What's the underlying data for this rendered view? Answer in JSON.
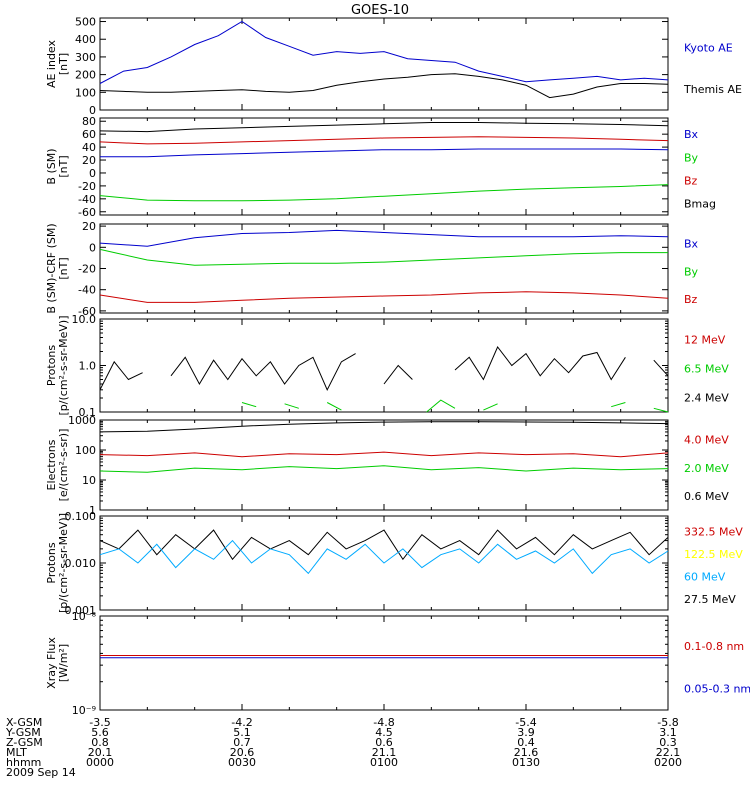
{
  "title": "GOES-10",
  "date_label": "2009 Sep 14",
  "colors": {
    "black": "#000000",
    "blue": "#0000cc",
    "red": "#cc0000",
    "green": "#00cc00",
    "yellow": "#ffff00",
    "cyan": "#00aaff",
    "axis": "#000000",
    "bg": "#ffffff"
  },
  "ephemeris": {
    "rows": [
      {
        "label": "X-GSM",
        "values": [
          "-3.5",
          "-4.2",
          "-4.8",
          "-5.4",
          "-5.8"
        ]
      },
      {
        "label": "Y-GSM",
        "values": [
          "5.6",
          "5.1",
          "4.5",
          "3.9",
          "3.1"
        ]
      },
      {
        "label": "Z-GSM",
        "values": [
          "0.8",
          "0.7",
          "0.6",
          "0.4",
          "0.3"
        ]
      },
      {
        "label": "MLT",
        "values": [
          "20.1",
          "20.6",
          "21.1",
          "21.6",
          "22.1"
        ]
      },
      {
        "label": "hhmm",
        "values": [
          "0000",
          "0030",
          "0100",
          "0130",
          "0200"
        ]
      }
    ]
  },
  "chart_data": [
    {
      "type": "line",
      "ylabel": [
        "AE index",
        "[nT]"
      ],
      "yscale": "linear",
      "ylim": [
        0,
        520
      ],
      "ticks": [
        {
          "v": 0,
          "t": "0"
        },
        {
          "v": 100,
          "t": "100"
        },
        {
          "v": 200,
          "t": "200"
        },
        {
          "v": 300,
          "t": "300"
        },
        {
          "v": 400,
          "t": "400"
        },
        {
          "v": 500,
          "t": "500"
        }
      ],
      "legend": [
        {
          "name": "Kyoto AE",
          "color": "#0000cc"
        },
        {
          "name": "Themis AE",
          "color": "#000000"
        }
      ],
      "x_minutes": [
        0,
        5,
        10,
        15,
        20,
        25,
        30,
        35,
        40,
        45,
        50,
        55,
        60,
        65,
        70,
        75,
        80,
        85,
        90,
        95,
        100,
        105,
        110,
        115,
        120
      ],
      "series": [
        {
          "name": "Kyoto AE",
          "color": "#0000cc",
          "values": [
            150,
            220,
            240,
            300,
            370,
            420,
            500,
            410,
            360,
            310,
            330,
            320,
            330,
            290,
            280,
            270,
            220,
            190,
            160,
            170,
            180,
            190,
            170,
            180,
            170
          ]
        },
        {
          "name": "Themis AE",
          "color": "#000000",
          "values": [
            110,
            105,
            100,
            100,
            105,
            110,
            115,
            105,
            100,
            110,
            140,
            160,
            175,
            185,
            200,
            205,
            190,
            170,
            140,
            70,
            90,
            130,
            150,
            150,
            145
          ]
        }
      ]
    },
    {
      "type": "line",
      "ylabel": [
        "B (SM)",
        "[nT]"
      ],
      "yscale": "linear",
      "ylim": [
        -65,
        85
      ],
      "ticks": [
        {
          "v": -60,
          "t": "-60"
        },
        {
          "v": -40,
          "t": "-40"
        },
        {
          "v": -20,
          "t": "-20"
        },
        {
          "v": 0,
          "t": "0"
        },
        {
          "v": 20,
          "t": "20"
        },
        {
          "v": 40,
          "t": "40"
        },
        {
          "v": 60,
          "t": "60"
        },
        {
          "v": 80,
          "t": "80"
        }
      ],
      "legend": [
        {
          "name": "Bx",
          "color": "#0000cc"
        },
        {
          "name": "By",
          "color": "#00cc00"
        },
        {
          "name": "Bz",
          "color": "#cc0000"
        },
        {
          "name": "Bmag",
          "color": "#000000"
        }
      ],
      "x_minutes": [
        0,
        10,
        20,
        30,
        40,
        50,
        60,
        70,
        80,
        90,
        100,
        110,
        120
      ],
      "series": [
        {
          "name": "Bmag",
          "color": "#000000",
          "values": [
            65,
            64,
            68,
            70,
            72,
            74,
            76,
            78,
            78,
            77,
            76,
            75,
            73
          ]
        },
        {
          "name": "Bz",
          "color": "#cc0000",
          "values": [
            48,
            45,
            46,
            48,
            50,
            52,
            54,
            55,
            56,
            55,
            54,
            52,
            50
          ]
        },
        {
          "name": "Bx",
          "color": "#0000cc",
          "values": [
            25,
            25,
            28,
            30,
            32,
            34,
            36,
            36,
            37,
            37,
            37,
            37,
            36
          ]
        },
        {
          "name": "By",
          "color": "#00cc00",
          "values": [
            -35,
            -42,
            -43,
            -43,
            -42,
            -40,
            -36,
            -32,
            -28,
            -25,
            -23,
            -21,
            -18
          ]
        }
      ]
    },
    {
      "type": "line",
      "ylabel": [
        "B (SM)-CRF (SM)",
        "[nT]"
      ],
      "yscale": "linear",
      "ylim": [
        -62,
        22
      ],
      "ticks": [
        {
          "v": -60,
          "t": "-60"
        },
        {
          "v": -40,
          "t": "-40"
        },
        {
          "v": -20,
          "t": "-20"
        },
        {
          "v": 0,
          "t": "0"
        },
        {
          "v": 20,
          "t": "20"
        }
      ],
      "legend": [
        {
          "name": "Bx",
          "color": "#0000cc"
        },
        {
          "name": "By",
          "color": "#00cc00"
        },
        {
          "name": "Bz",
          "color": "#cc0000"
        }
      ],
      "x_minutes": [
        0,
        10,
        20,
        30,
        40,
        50,
        60,
        70,
        80,
        90,
        100,
        110,
        120
      ],
      "series": [
        {
          "name": "Bx",
          "color": "#0000cc",
          "values": [
            4,
            1,
            9,
            13,
            14,
            16,
            14,
            12,
            10,
            10,
            10,
            11,
            10
          ]
        },
        {
          "name": "By",
          "color": "#00cc00",
          "values": [
            -2,
            -12,
            -17,
            -16,
            -15,
            -15,
            -14,
            -12,
            -10,
            -8,
            -6,
            -5,
            -5
          ]
        },
        {
          "name": "Bz",
          "color": "#cc0000",
          "values": [
            -45,
            -52,
            -52,
            -50,
            -48,
            -47,
            -46,
            -45,
            -43,
            -42,
            -43,
            -45,
            -48
          ]
        }
      ]
    },
    {
      "type": "line",
      "ylabel": [
        "Protons",
        "[p/(cm²-s-sr-MeV)]"
      ],
      "yscale": "log",
      "ylim": [
        0.1,
        10
      ],
      "ticks": [
        {
          "v": 0.1,
          "t": "0.1"
        },
        {
          "v": 1,
          "t": "1.0"
        },
        {
          "v": 10,
          "t": "10.0"
        }
      ],
      "legend": [
        {
          "name": "12 MeV",
          "color": "#cc0000"
        },
        {
          "name": "6.5 MeV",
          "color": "#00cc00"
        },
        {
          "name": "2.4 MeV",
          "color": "#000000"
        }
      ],
      "x_minutes": [
        0,
        3,
        6,
        9,
        12,
        15,
        18,
        21,
        24,
        27,
        30,
        33,
        36,
        39,
        42,
        45,
        48,
        51,
        54,
        57,
        60,
        63,
        66,
        69,
        72,
        75,
        78,
        81,
        84,
        87,
        90,
        93,
        96,
        99,
        102,
        105,
        108,
        111,
        114,
        117,
        120
      ],
      "series": [
        {
          "name": "2.4 MeV",
          "color": "#000000",
          "values": [
            0.3,
            1.2,
            0.5,
            0.7,
            null,
            0.6,
            1.5,
            0.4,
            1.3,
            0.5,
            1.4,
            0.6,
            1.2,
            0.4,
            1.0,
            1.5,
            0.3,
            1.2,
            1.8,
            null,
            0.4,
            1.0,
            0.5,
            null,
            null,
            0.8,
            1.5,
            0.5,
            2.5,
            1.0,
            1.8,
            0.6,
            1.4,
            0.7,
            1.6,
            1.9,
            0.5,
            1.5,
            null,
            1.3,
            0.6
          ]
        },
        {
          "name": "6.5 MeV",
          "color": "#00cc00",
          "values": [
            0.15,
            null,
            null,
            null,
            0.12,
            null,
            0.2,
            null,
            0.11,
            null,
            0.16,
            0.13,
            null,
            0.15,
            0.12,
            null,
            0.16,
            0.11,
            null,
            null,
            null,
            null,
            null,
            0.1,
            0.18,
            0.12,
            null,
            0.11,
            0.15,
            null,
            null,
            0.12,
            null,
            0.14,
            null,
            null,
            0.13,
            0.16,
            null,
            0.12,
            0.1
          ]
        },
        {
          "name": "12 MeV",
          "color": "#cc0000",
          "values": [
            null,
            null,
            null,
            0.12,
            null,
            null,
            null,
            null,
            null,
            0.11,
            null,
            null,
            null,
            0.12,
            null,
            null,
            null,
            null,
            null,
            null,
            null,
            null,
            null,
            null,
            0.12,
            null,
            null,
            null,
            null,
            null,
            null,
            null,
            null,
            null,
            null,
            null,
            null,
            0.13,
            null,
            null,
            null
          ]
        }
      ]
    },
    {
      "type": "line",
      "ylabel": [
        "Electrons",
        "[e/(cm²-s-sr)]"
      ],
      "yscale": "log",
      "ylim": [
        1,
        1000
      ],
      "ticks": [
        {
          "v": 1,
          "t": "1"
        },
        {
          "v": 10,
          "t": "10"
        },
        {
          "v": 100,
          "t": "100"
        },
        {
          "v": 1000,
          "t": "1000"
        }
      ],
      "legend": [
        {
          "name": "4.0 MeV",
          "color": "#cc0000"
        },
        {
          "name": "2.0 MeV",
          "color": "#00cc00"
        },
        {
          "name": "0.6 MeV",
          "color": "#000000"
        }
      ],
      "x_minutes": [
        0,
        10,
        20,
        30,
        40,
        50,
        60,
        70,
        80,
        90,
        100,
        110,
        120
      ],
      "series": [
        {
          "name": "0.6 MeV",
          "color": "#000000",
          "values": [
            400,
            420,
            500,
            620,
            720,
            800,
            850,
            880,
            870,
            860,
            840,
            800,
            760
          ]
        },
        {
          "name": "4.0 MeV",
          "color": "#cc0000",
          "values": [
            70,
            65,
            80,
            60,
            75,
            70,
            85,
            65,
            80,
            70,
            75,
            60,
            80
          ]
        },
        {
          "name": "2.0 MeV",
          "color": "#00cc00",
          "values": [
            20,
            18,
            25,
            22,
            28,
            24,
            30,
            22,
            26,
            20,
            25,
            22,
            24
          ]
        }
      ]
    },
    {
      "type": "line",
      "ylabel": [
        "Protons",
        "[p/(cm²-s-sr-MeV)]"
      ],
      "yscale": "log",
      "ylim": [
        0.001,
        0.1
      ],
      "ticks": [
        {
          "v": 0.001,
          "t": "0.001"
        },
        {
          "v": 0.01,
          "t": "0.010"
        },
        {
          "v": 0.1,
          "t": "0.100"
        }
      ],
      "legend": [
        {
          "name": "332.5 MeV",
          "color": "#cc0000"
        },
        {
          "name": "122.5 MeV",
          "color": "#ffff00"
        },
        {
          "name": "60 MeV",
          "color": "#00aaff"
        },
        {
          "name": "27.5 MeV",
          "color": "#000000"
        }
      ],
      "x_minutes": [
        0,
        4,
        8,
        12,
        16,
        20,
        24,
        28,
        32,
        36,
        40,
        44,
        48,
        52,
        56,
        60,
        64,
        68,
        72,
        76,
        80,
        84,
        88,
        92,
        96,
        100,
        104,
        108,
        112,
        116,
        120
      ],
      "series": [
        {
          "name": "27.5 MeV",
          "color": "#000000",
          "values": [
            0.03,
            0.02,
            0.05,
            0.015,
            0.04,
            0.02,
            0.05,
            0.012,
            0.035,
            0.02,
            0.03,
            0.015,
            0.045,
            0.02,
            0.03,
            0.05,
            0.012,
            0.04,
            0.02,
            0.03,
            0.015,
            0.05,
            0.02,
            0.035,
            0.015,
            0.04,
            0.02,
            0.03,
            0.045,
            0.015,
            0.035
          ]
        },
        {
          "name": "60 MeV",
          "color": "#00aaff",
          "values": [
            0.015,
            0.02,
            0.01,
            0.025,
            0.008,
            0.02,
            0.012,
            0.03,
            0.01,
            0.02,
            0.015,
            0.006,
            0.02,
            0.012,
            0.025,
            0.01,
            0.02,
            0.008,
            0.015,
            0.02,
            0.01,
            0.025,
            0.012,
            0.018,
            0.01,
            0.02,
            0.006,
            0.015,
            0.02,
            0.01,
            0.018
          ]
        }
      ]
    },
    {
      "type": "line",
      "ylabel": [
        "Xray Flux",
        "[W/m²]"
      ],
      "yscale": "log",
      "ylim": [
        1e-09,
        1e-08
      ],
      "ticks": [
        {
          "v": 1e-09,
          "t": "10⁻⁹"
        },
        {
          "v": 1e-08,
          "t": "10⁻⁸"
        }
      ],
      "legend": [
        {
          "name": "0.1-0.8 nm",
          "color": "#cc0000"
        },
        {
          "name": "0.05-0.3 nm",
          "color": "#0000cc"
        }
      ],
      "x_minutes": [
        0,
        120
      ],
      "series": [
        {
          "name": "0.1-0.8 nm",
          "color": "#cc0000",
          "values": [
            3.8e-09,
            3.8e-09
          ]
        },
        {
          "name": "0.05-0.3 nm",
          "color": "#0000cc",
          "values": [
            3.6e-09,
            3.6e-09
          ]
        }
      ]
    }
  ]
}
